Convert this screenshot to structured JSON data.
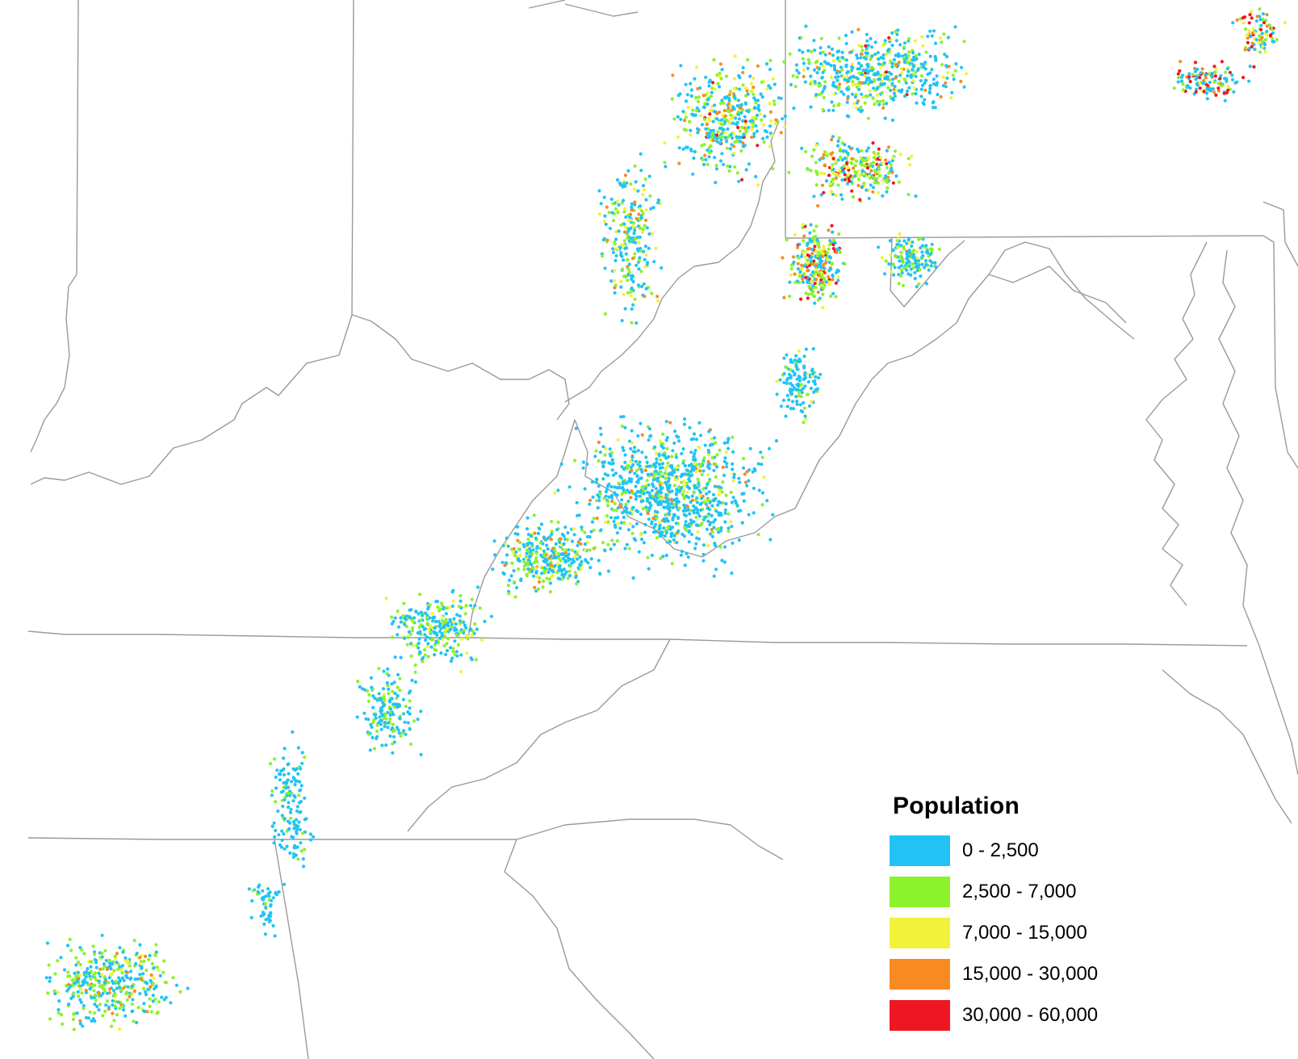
{
  "colors": {
    "background": "#ffffff",
    "boundary": "#9a9a9a"
  },
  "legend": {
    "title": "Population",
    "items": [
      {
        "label": "0 - 2,500",
        "color": "#22c3f4"
      },
      {
        "label": "2,500 - 7,000",
        "color": "#8cf22b"
      },
      {
        "label": "7,000 - 15,000",
        "color": "#f2f23a"
      },
      {
        "label": "15,000 - 30,000",
        "color": "#f78b22"
      },
      {
        "label": "30,000 - 60,000",
        "color": "#ef1624"
      }
    ]
  }
}
